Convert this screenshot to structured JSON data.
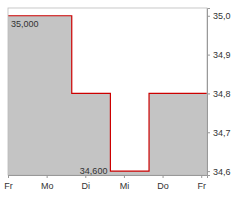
{
  "chart_data": {
    "type": "line",
    "x": [
      0,
      1.65,
      2.65,
      3.65,
      5.15
    ],
    "values": [
      35.0,
      34.8,
      34.6,
      34.8,
      34.8
    ],
    "color": "#cc0000",
    "line_style": "step",
    "xlim": [
      0,
      5.15
    ],
    "xticks": [
      {
        "value": 0,
        "label": "Fr"
      },
      {
        "value": 1,
        "label": "Mo"
      },
      {
        "value": 2,
        "label": "Di"
      },
      {
        "value": 3,
        "label": "Mi"
      },
      {
        "value": 4,
        "label": "Do"
      },
      {
        "value": 5,
        "label": "Fr"
      }
    ],
    "ylim": [
      34.59,
      35.02
    ],
    "yticks": [
      {
        "value": 34.6,
        "label": "34,6"
      },
      {
        "value": 34.7,
        "label": "34,7"
      },
      {
        "value": 34.8,
        "label": "34,8"
      },
      {
        "value": 34.9,
        "label": "34,9"
      },
      {
        "value": 35.0,
        "label": "35,0"
      }
    ],
    "annotations": [
      {
        "label": "35,000",
        "value": 35.0
      },
      {
        "label": "34,600",
        "value": 34.6
      }
    ],
    "grid": false
  }
}
